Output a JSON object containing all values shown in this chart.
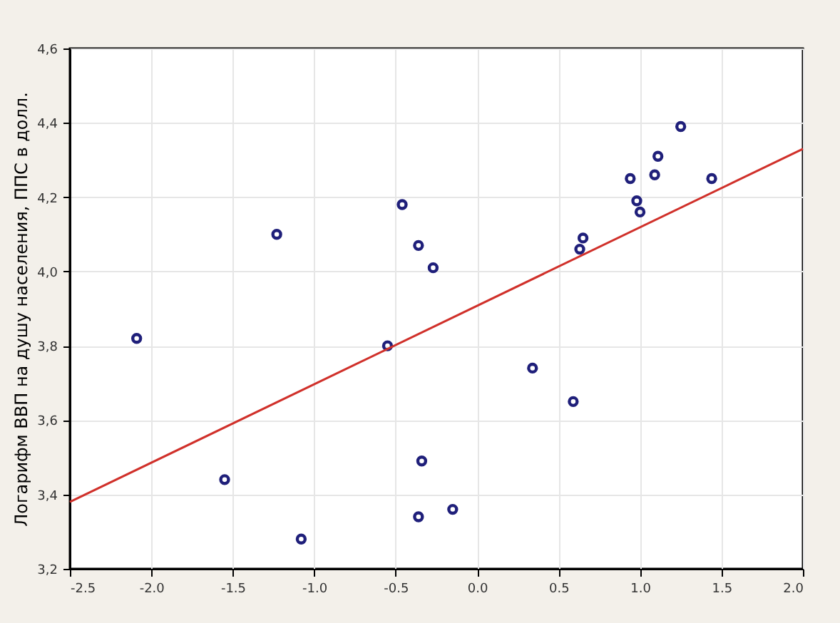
{
  "chart_data": {
    "type": "scatter",
    "ylabel": "Логарифм  ВВП на душу населения, ППС в долл.",
    "xlim": [
      -2.5,
      2.0
    ],
    "ylim": [
      3.2,
      4.6
    ],
    "xticks": [
      {
        "value": -2.5,
        "label": "-2.5"
      },
      {
        "value": -2.0,
        "label": "-2.0"
      },
      {
        "value": -1.5,
        "label": "-1.5"
      },
      {
        "value": -1.0,
        "label": "-1.0"
      },
      {
        "value": -0.5,
        "label": "-0.5"
      },
      {
        "value": 0.0,
        "label": "0.0"
      },
      {
        "value": 0.5,
        "label": "0.5"
      },
      {
        "value": 1.0,
        "label": "1.0"
      },
      {
        "value": 1.5,
        "label": "1.5"
      },
      {
        "value": 2.0,
        "label": "2.0"
      }
    ],
    "yticks": [
      {
        "value": 3.2,
        "label": "3,2"
      },
      {
        "value": 3.4,
        "label": "3,4"
      },
      {
        "value": 3.6,
        "label": "3,6"
      },
      {
        "value": 3.8,
        "label": "3,8"
      },
      {
        "value": 4.0,
        "label": "4,0"
      },
      {
        "value": 4.2,
        "label": "4,2"
      },
      {
        "value": 4.4,
        "label": "4,4"
      },
      {
        "value": 4.6,
        "label": "4,6"
      }
    ],
    "grid": true,
    "series": [
      {
        "marker": "circle",
        "color": "#1f1f7a",
        "x": [
          -2.09,
          -1.55,
          -1.23,
          -1.08,
          -0.55,
          -0.46,
          -0.36,
          -0.27,
          -0.34,
          -0.36,
          -0.15,
          0.34,
          0.59,
          0.65,
          0.63,
          0.94,
          0.98,
          1.0,
          1.09,
          1.11,
          1.25,
          1.44
        ],
        "values": [
          3.82,
          3.44,
          4.1,
          3.28,
          3.8,
          4.18,
          4.07,
          4.01,
          3.49,
          3.34,
          3.36,
          3.74,
          3.65,
          4.09,
          4.06,
          4.25,
          4.19,
          4.16,
          4.26,
          4.31,
          4.39,
          4.25
        ]
      },
      {
        "type": "line",
        "color": "#d0302a",
        "line_style": "solid",
        "x": [
          -2.5,
          2.0
        ],
        "values": [
          3.38,
          4.33
        ]
      }
    ]
  }
}
